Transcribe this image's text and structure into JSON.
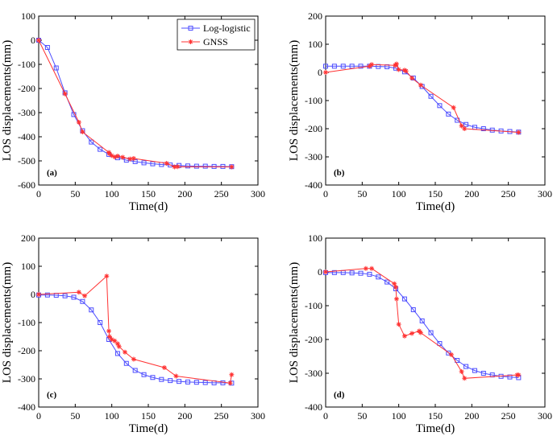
{
  "colors": {
    "loglogistic": "#4d4dff",
    "gnss": "#ff3333",
    "axis": "#000000"
  },
  "legend": {
    "entries": [
      "Log-logistic",
      "GNSS"
    ],
    "placement": "top-right"
  },
  "chart_data": [
    {
      "type": "line",
      "panel_label": "(a)",
      "xlabel": "Time(d)",
      "ylabel": "LOS displacements(mm)",
      "xlim": [
        0,
        300
      ],
      "ylim": [
        -600,
        100
      ],
      "xticks": [
        0,
        50,
        100,
        150,
        200,
        250,
        300
      ],
      "yticks": [
        -600,
        -500,
        -400,
        -300,
        -200,
        -100,
        0,
        100
      ],
      "grid": false,
      "legend": true,
      "series": [
        {
          "name": "Log-logistic",
          "marker": "square",
          "x": [
            0,
            12,
            24,
            36,
            48,
            60,
            72,
            84,
            96,
            108,
            120,
            132,
            144,
            156,
            168,
            180,
            192,
            204,
            216,
            228,
            240,
            252,
            264
          ],
          "y": [
            0,
            -30,
            -115,
            -218,
            -308,
            -375,
            -422,
            -452,
            -473,
            -487,
            -497,
            -503,
            -508,
            -512,
            -515,
            -517,
            -519,
            -521,
            -522,
            -522,
            -523,
            -523,
            -524
          ]
        },
        {
          "name": "GNSS",
          "marker": "star",
          "x": [
            0,
            36,
            55,
            60,
            96,
            97,
            100,
            104,
            108,
            115,
            125,
            130,
            175,
            186,
            190,
            264
          ],
          "y": [
            0,
            -222,
            -340,
            -380,
            -465,
            -470,
            -478,
            -484,
            -480,
            -485,
            -492,
            -490,
            -510,
            -525,
            -524,
            -525
          ]
        }
      ]
    },
    {
      "type": "line",
      "panel_label": "(b)",
      "xlabel": "Time(d)",
      "ylabel": "LOS displacements(mm)",
      "xlim": [
        0,
        300
      ],
      "ylim": [
        -400,
        200
      ],
      "xticks": [
        0,
        50,
        100,
        150,
        200,
        250,
        300
      ],
      "yticks": [
        -400,
        -300,
        -200,
        -100,
        0,
        100,
        200
      ],
      "grid": false,
      "legend": false,
      "series": [
        {
          "name": "Log-logistic",
          "marker": "square",
          "x": [
            0,
            12,
            24,
            36,
            48,
            60,
            72,
            84,
            96,
            108,
            120,
            132,
            144,
            156,
            168,
            180,
            192,
            204,
            216,
            228,
            240,
            252,
            264
          ],
          "y": [
            22,
            22,
            22,
            22,
            22,
            22,
            21,
            20,
            15,
            2,
            -20,
            -50,
            -85,
            -118,
            -148,
            -170,
            -185,
            -195,
            -200,
            -205,
            -208,
            -210,
            -212
          ]
        },
        {
          "name": "GNSS",
          "marker": "star",
          "x": [
            0,
            60,
            63,
            95,
            97,
            100,
            108,
            110,
            118,
            130,
            175,
            186,
            190,
            264
          ],
          "y": [
            0,
            22,
            28,
            25,
            30,
            10,
            8,
            5,
            -20,
            -45,
            -125,
            -190,
            -200,
            -213
          ]
        }
      ]
    },
    {
      "type": "line",
      "panel_label": "(c)",
      "xlabel": "Time(d)",
      "ylabel": "LOS displacements(mm)",
      "xlim": [
        0,
        300
      ],
      "ylim": [
        -400,
        200
      ],
      "xticks": [
        0,
        50,
        100,
        150,
        200,
        250,
        300
      ],
      "yticks": [
        -400,
        -300,
        -200,
        -100,
        0,
        100,
        200
      ],
      "grid": false,
      "legend": false,
      "series": [
        {
          "name": "Log-logistic",
          "marker": "square",
          "x": [
            0,
            12,
            24,
            36,
            48,
            60,
            72,
            84,
            96,
            108,
            120,
            132,
            144,
            156,
            168,
            180,
            192,
            204,
            216,
            228,
            240,
            252,
            264
          ],
          "y": [
            -2,
            -2,
            -3,
            -5,
            -10,
            -25,
            -55,
            -100,
            -160,
            -210,
            -245,
            -270,
            -285,
            -295,
            -302,
            -306,
            -309,
            -311,
            -312,
            -313,
            -314,
            -314,
            -315
          ]
        },
        {
          "name": "GNSS",
          "marker": "star",
          "x": [
            0,
            55,
            63,
            93,
            96,
            97,
            100,
            104,
            108,
            110,
            118,
            130,
            172,
            188,
            262,
            264
          ],
          "y": [
            0,
            8,
            -5,
            65,
            -130,
            -150,
            -160,
            -165,
            -175,
            -185,
            -205,
            -230,
            -260,
            -290,
            -315,
            -285
          ]
        }
      ]
    },
    {
      "type": "line",
      "panel_label": "(d)",
      "xlabel": "Time(d)",
      "ylabel": "LOS displacements(mm)",
      "xlim": [
        0,
        300
      ],
      "ylim": [
        -400,
        100
      ],
      "xticks": [
        0,
        50,
        100,
        150,
        200,
        250,
        300
      ],
      "yticks": [
        -400,
        -300,
        -200,
        -100,
        0,
        100
      ],
      "grid": false,
      "legend": false,
      "series": [
        {
          "name": "Log-logistic",
          "marker": "square",
          "x": [
            0,
            12,
            24,
            36,
            48,
            60,
            72,
            84,
            96,
            108,
            120,
            132,
            144,
            156,
            168,
            180,
            192,
            204,
            216,
            228,
            240,
            252,
            264
          ],
          "y": [
            -2,
            -2,
            -2,
            -3,
            -4,
            -7,
            -15,
            -30,
            -50,
            -80,
            -112,
            -145,
            -180,
            -212,
            -240,
            -262,
            -280,
            -292,
            -300,
            -305,
            -309,
            -311,
            -313
          ]
        },
        {
          "name": "GNSS",
          "marker": "star",
          "x": [
            0,
            55,
            63,
            94,
            96,
            97,
            100,
            108,
            118,
            128,
            130,
            172,
            186,
            190,
            262,
            264
          ],
          "y": [
            0,
            10,
            10,
            -35,
            -45,
            -80,
            -155,
            -190,
            -182,
            -175,
            -180,
            -245,
            -295,
            -315,
            -305,
            -305
          ]
        }
      ]
    }
  ]
}
